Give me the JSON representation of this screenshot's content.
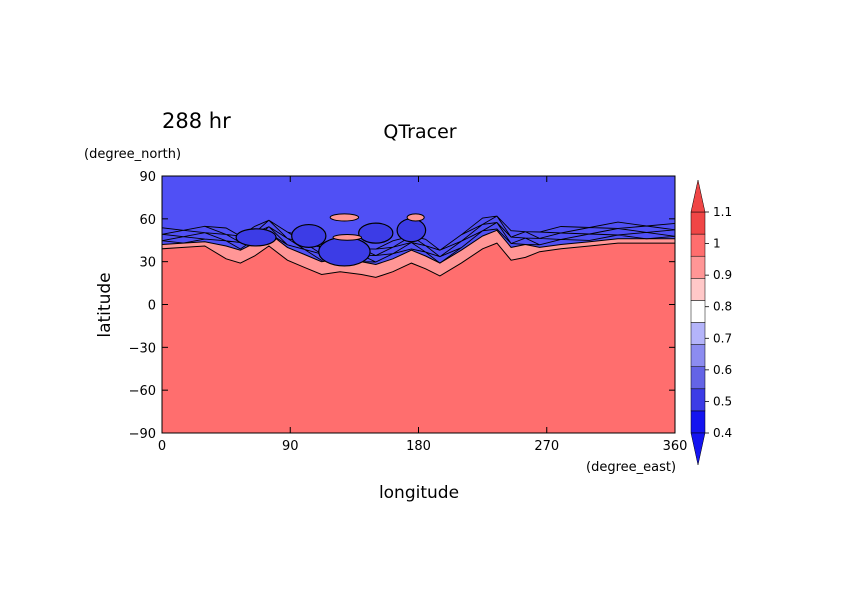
{
  "chart_data": {
    "type": "heatmap",
    "time_label": "288 hr",
    "title": "QTracer",
    "xlabel": "longitude",
    "ylabel": "latitude",
    "x_unit": "(degree_east)",
    "y_unit": "(degree_north)",
    "xlim": [
      0,
      360
    ],
    "ylim": [
      -90,
      90
    ],
    "x_ticks": [
      0,
      90,
      180,
      270,
      360
    ],
    "y_ticks": [
      90,
      60,
      30,
      0,
      -30,
      -60,
      -90
    ],
    "x_tick_labels": [
      "0",
      "90",
      "180",
      "270",
      "360"
    ],
    "y_tick_labels": [
      "90",
      "60",
      "30",
      "0",
      "−30",
      "−60",
      "−90"
    ],
    "colorbar": {
      "levels": [
        0.4,
        0.5,
        0.6,
        0.7,
        0.8,
        0.9,
        1,
        1.1
      ],
      "labels": [
        "0.4",
        "0.5",
        "0.6",
        "0.7",
        "0.8",
        "0.9",
        "1",
        "1.1"
      ],
      "colors": [
        "#1414f0",
        "#3c3ce6",
        "#6464e6",
        "#8c8cf0",
        "#b4b4fa",
        "#ffffff",
        "#ffc8c8",
        "#ff9696",
        "#ff6e6e",
        "#f04646"
      ],
      "extend": "both"
    },
    "background_region": {
      "value_range": [
        1,
        1.1
      ],
      "color": "#ff6e6e"
    },
    "polar_region": {
      "value_range": [
        0.5,
        0.6
      ],
      "color": "#5050f5"
    },
    "boundary": [
      [
        0,
        42
      ],
      [
        15,
        43
      ],
      [
        30,
        44
      ],
      [
        45,
        41
      ],
      [
        55,
        38
      ],
      [
        65,
        43
      ],
      [
        75,
        50
      ],
      [
        88,
        40
      ],
      [
        100,
        35
      ],
      [
        112,
        30
      ],
      [
        125,
        32
      ],
      [
        140,
        30
      ],
      [
        150,
        28
      ],
      [
        162,
        32
      ],
      [
        175,
        38
      ],
      [
        185,
        34
      ],
      [
        195,
        29
      ],
      [
        210,
        38
      ],
      [
        225,
        48
      ],
      [
        235,
        52
      ],
      [
        245,
        40
      ],
      [
        255,
        42
      ],
      [
        265,
        40
      ],
      [
        280,
        42
      ],
      [
        300,
        44
      ],
      [
        320,
        46
      ],
      [
        340,
        46
      ],
      [
        360,
        46
      ]
    ]
  }
}
